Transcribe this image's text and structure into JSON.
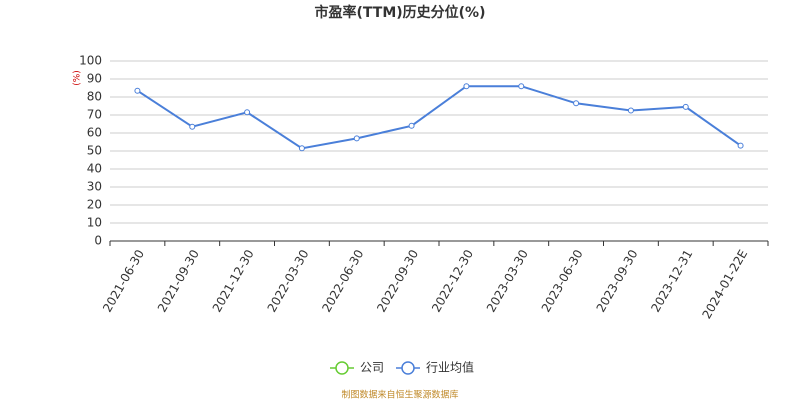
{
  "chart_data": {
    "type": "line",
    "title": "市盈率(TTM)历史分位(%)",
    "y_label": "(%)",
    "categories": [
      "2021-06-30",
      "2021-09-30",
      "2021-12-30",
      "2022-03-30",
      "2022-06-30",
      "2022-09-30",
      "2022-12-30",
      "2023-03-30",
      "2023-06-30",
      "2023-09-30",
      "2023-12-31",
      "2024-01-22E"
    ],
    "series": [
      {
        "name": "公司",
        "color": "#66cc33",
        "values": [
          null,
          null,
          null,
          null,
          null,
          null,
          null,
          null,
          null,
          null,
          null,
          null
        ]
      },
      {
        "name": "行业均值",
        "color": "#4a7fd9",
        "values": [
          83.5,
          63.5,
          71.5,
          51.5,
          57,
          64,
          86,
          86,
          76.5,
          72.5,
          74.5,
          53
        ]
      }
    ],
    "ylim": [
      0,
      100
    ],
    "yticks": [
      0,
      10,
      20,
      30,
      40,
      50,
      60,
      70,
      80,
      90,
      100
    ],
    "grid": true,
    "source": "制图数据来自恒生聚源数据库"
  }
}
